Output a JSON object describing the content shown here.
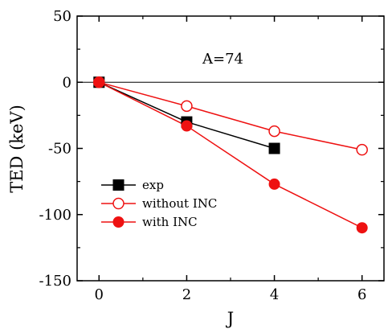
{
  "chart_data": {
    "type": "line",
    "xlabel": "J",
    "ylabel": "TED (keV)",
    "xlim": [
      -0.5,
      6.5
    ],
    "ylim": [
      -150,
      50
    ],
    "xticks": [
      0,
      2,
      4,
      6
    ],
    "yticks": [
      50,
      0,
      -50,
      -100,
      -150
    ],
    "zero_line": true,
    "annotation": "A=74",
    "legend_position": "lower-left",
    "series": [
      {
        "name": "exp",
        "marker": "filled-square",
        "color": "#000000",
        "x": [
          0,
          2,
          4
        ],
        "y": [
          0,
          -30,
          -50
        ]
      },
      {
        "name": "without INC",
        "marker": "open-circle",
        "color": "#ee1111",
        "x": [
          0,
          2,
          4,
          6
        ],
        "y": [
          0,
          -18,
          -37,
          -51
        ]
      },
      {
        "name": "with INC",
        "marker": "filled-circle",
        "color": "#ee1111",
        "x": [
          0,
          2,
          4,
          6
        ],
        "y": [
          0,
          -33,
          -77,
          -110
        ]
      }
    ]
  }
}
